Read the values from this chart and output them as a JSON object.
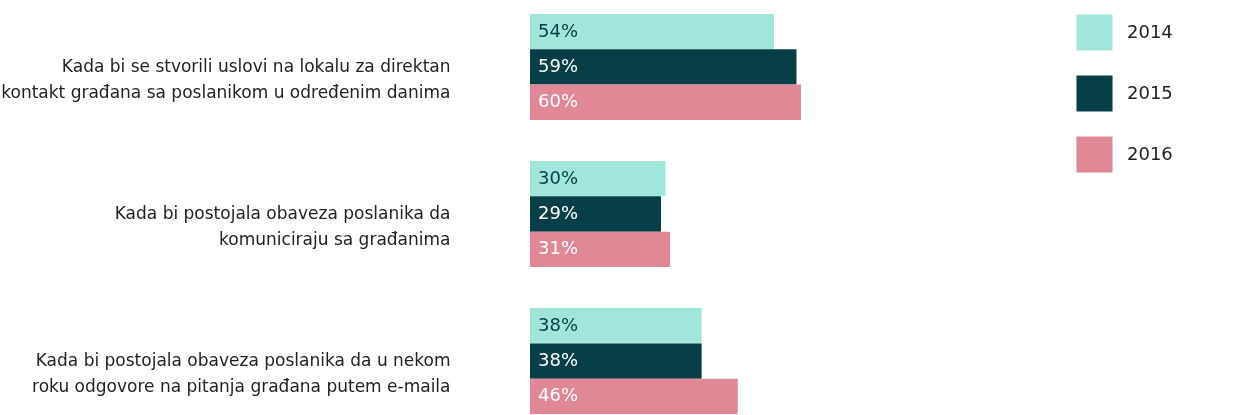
{
  "chart_data": {
    "type": "bar",
    "orientation": "horizontal",
    "categories": [
      "Kada bi se stvorili uslovi na lokalu za direktan kontakt građana sa poslanikom u određenim danima",
      "Kada bi postojala obaveza poslanika da komuniciraju sa građanima",
      "Kada bi postojala obaveza poslanika da u nekom roku odgovore na pitanja građana putem e-maila"
    ],
    "series": [
      {
        "name": "2014",
        "color": "#a0e6da",
        "values": [
          54,
          30,
          38
        ],
        "value_labels": [
          "54%",
          "30%",
          "38%"
        ]
      },
      {
        "name": "2015",
        "color": "#063f47",
        "values": [
          59,
          29,
          38
        ],
        "value_labels": [
          "59%",
          "29%",
          "38%"
        ]
      },
      {
        "name": "2016",
        "color": "#e08896",
        "values": [
          60,
          31,
          46
        ],
        "value_labels": [
          "60%",
          "31%",
          "46%"
        ]
      }
    ],
    "legend": "right",
    "relative": false
  }
}
